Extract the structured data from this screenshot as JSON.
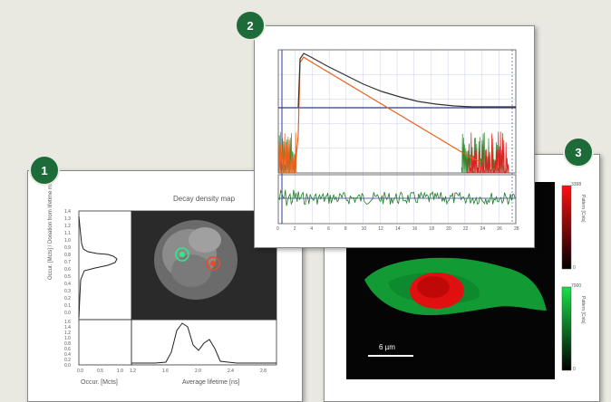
{
  "badges": {
    "one": "1",
    "two": "2",
    "three": "3"
  },
  "panel1": {
    "title": "Decay density map",
    "y_label": "Occur. [Mcts] / Donation from lifetime map",
    "x_label_left": "Occur. [Mcts]",
    "x_label_right": "Average lifetime [ns]",
    "y_ticks": [
      "1.4",
      "1.3",
      "1.2",
      "1.1",
      "1.0",
      "0.9",
      "0.8",
      "0.7",
      "0.6",
      "0.5",
      "0.4",
      "0.3",
      "0.2",
      "0.1",
      "0.0"
    ],
    "bottom_y_ticks": [
      "1.6",
      "1.4",
      "1.2",
      "1.0",
      "0.8",
      "0.6",
      "0.4",
      "0.2",
      "0.0"
    ],
    "x_ticks_left": [
      "0.0",
      "0.5",
      "1.0"
    ],
    "x_ticks_right": [
      "1.2",
      "1.6",
      "2.0",
      "2.4",
      "2.8"
    ]
  },
  "panel2": {
    "x_ticks": [
      "0",
      "2",
      "4",
      "6",
      "8",
      "10",
      "12",
      "14",
      "16",
      "18",
      "20",
      "22",
      "24",
      "26",
      "28"
    ],
    "colors": {
      "black": "#333333",
      "orange": "#e8601c",
      "green": "#2e8b2e",
      "blue": "#2a3a9a",
      "red": "#e02020"
    }
  },
  "panel3": {
    "scale_bar": "6 µm",
    "bar_top_label": "Pattern [Cnts]",
    "bar_bottom_label": "Pattern [Cnts]",
    "bar_top_max": "3398",
    "bar_top_min": "0",
    "bar_bottom_max": "7000",
    "bar_bottom_min": "0",
    "colors": {
      "red": "#e01010",
      "green": "#14a83a"
    }
  }
}
